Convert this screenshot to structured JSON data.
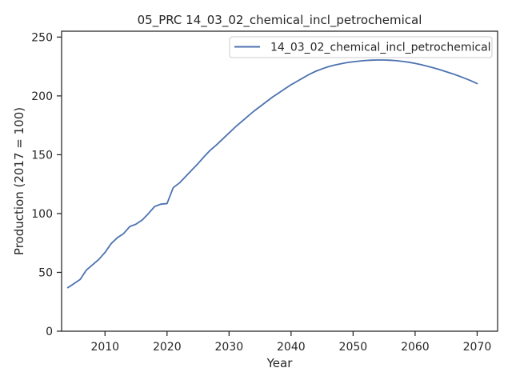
{
  "chart_data": {
    "type": "line",
    "title": "05_PRC 14_03_02_chemical_incl_petrochemical",
    "xlabel": "Year",
    "ylabel": "Production (2017 = 100)",
    "xlim": [
      2003,
      2073.3
    ],
    "ylim": [
      0,
      255
    ],
    "x_ticks": [
      2010,
      2020,
      2030,
      2040,
      2050,
      2060,
      2070
    ],
    "y_ticks": [
      0,
      50,
      100,
      150,
      200,
      250
    ],
    "grid": false,
    "legend": {
      "position": "top-right"
    },
    "series": [
      {
        "name": "14_03_02_chemical_incl_petrochemical",
        "color": "#4c72b0",
        "x": [
          2004,
          2005,
          2006,
          2007,
          2008,
          2009,
          2010,
          2011,
          2012,
          2013,
          2014,
          2015,
          2016,
          2017,
          2018,
          2019,
          2020,
          2021,
          2022,
          2023,
          2024,
          2025,
          2026,
          2027,
          2028,
          2029,
          2030,
          2031,
          2032,
          2033,
          2034,
          2035,
          2036,
          2037,
          2038,
          2039,
          2040,
          2041,
          2042,
          2043,
          2044,
          2045,
          2046,
          2047,
          2048,
          2049,
          2050,
          2051,
          2052,
          2053,
          2054,
          2055,
          2056,
          2057,
          2058,
          2059,
          2060,
          2061,
          2062,
          2063,
          2064,
          2065,
          2066,
          2067,
          2068,
          2069,
          2070
        ],
        "values": [
          37,
          40.5,
          44,
          52,
          56.5,
          61,
          67,
          74.5,
          79.5,
          83,
          89,
          91,
          94.5,
          100,
          106,
          108,
          108.5,
          122,
          126,
          131.5,
          137,
          142.5,
          148.5,
          154,
          158.5,
          163.5,
          168.5,
          173.5,
          178,
          182.5,
          187,
          191,
          195,
          199,
          202.5,
          206,
          209.5,
          212.5,
          215.5,
          218.5,
          221,
          223,
          224.8,
          226.2,
          227.3,
          228.3,
          229,
          229.6,
          230.1,
          230.4,
          230.5,
          230.5,
          230.3,
          229.9,
          229.3,
          228.6,
          227.6,
          226.5,
          225.2,
          223.8,
          222.3,
          220.6,
          218.9,
          217,
          215,
          212.9,
          210.5
        ]
      }
    ]
  }
}
